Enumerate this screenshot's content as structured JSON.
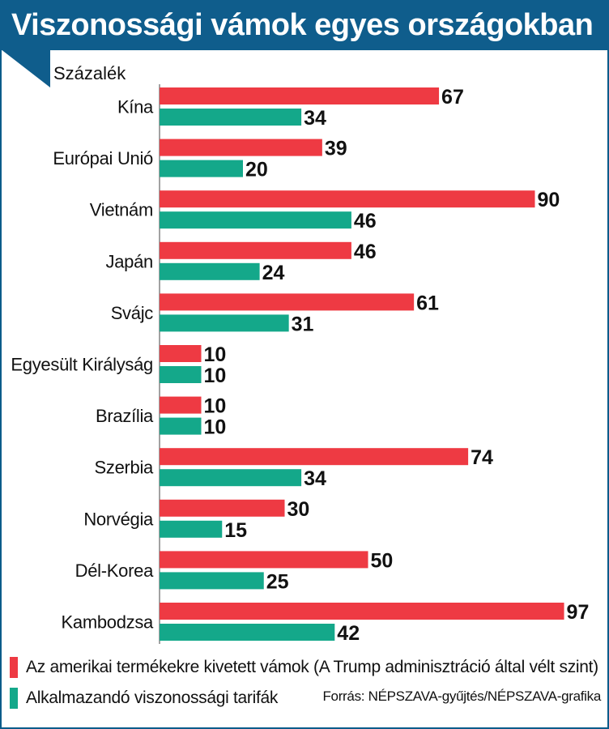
{
  "title": "Viszonossági vámok egyes országokban",
  "colors": {
    "header": "#0f5d8c",
    "us_tariff": "#ee3a43",
    "reciprocal": "#14a88a",
    "text": "#111111"
  },
  "chart_data": {
    "type": "bar",
    "orientation": "horizontal",
    "title": "Viszonossági vámok egyes országokban",
    "unit_label": "Százalék",
    "categories": [
      "Kína",
      "Európai Unió",
      "Vietnám",
      "Japán",
      "Svájc",
      "Egyesült Királyság",
      "Brazília",
      "Szerbia",
      "Norvégia",
      "Dél-Korea",
      "Kambodzsa"
    ],
    "series": [
      {
        "name": "Az amerikai termékekre kivetett vámok (A Trump adminisztráció által vélt szint)",
        "color": "#ee3a43",
        "values": [
          67,
          39,
          90,
          46,
          61,
          10,
          10,
          74,
          30,
          50,
          97
        ]
      },
      {
        "name": "Alkalmazandó viszonossági tarifák",
        "color": "#14a88a",
        "values": [
          34,
          20,
          46,
          24,
          31,
          10,
          10,
          34,
          15,
          25,
          42
        ]
      }
    ],
    "xlim": [
      0,
      100
    ],
    "grid": false,
    "legend_position": "bottom-left"
  },
  "source": "Forrás: NÉPSZAVA-gyűjtés/NÉPSZAVA-grafika"
}
